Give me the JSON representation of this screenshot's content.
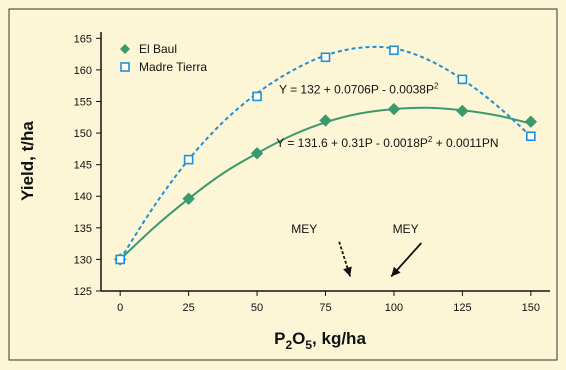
{
  "chart_data": {
    "type": "line",
    "title": "",
    "xlabel": "P2O5, kg/ha",
    "xlabel_parts": {
      "base": "P",
      "sub1": "2",
      "mid": "O",
      "sub2": "5",
      "rest": ", kg/ha"
    },
    "ylabel": "Yield, t/ha",
    "xlim": [
      -7,
      157
    ],
    "ylim": [
      125,
      166
    ],
    "x_ticks": [
      0,
      25,
      50,
      75,
      100,
      125,
      150
    ],
    "y_ticks": [
      125,
      130,
      135,
      140,
      145,
      150,
      155,
      160,
      165
    ],
    "grid": false,
    "legend_position": "top-left",
    "series": [
      {
        "name": "El Baul",
        "marker": "filled-diamond",
        "line_style": "solid",
        "color": "#3a9a6e",
        "x": [
          0,
          25,
          50,
          75,
          100,
          125,
          150
        ],
        "values": [
          130,
          139.6,
          146.8,
          152,
          153.8,
          153.5,
          151.8
        ],
        "curve": [
          [
            0,
            130
          ],
          [
            12.5,
            135.1
          ],
          [
            25,
            139.6
          ],
          [
            37.5,
            143.6
          ],
          [
            50,
            146.8
          ],
          [
            62.5,
            149.6
          ],
          [
            75,
            151.7
          ],
          [
            87.5,
            153.1
          ],
          [
            100,
            153.8
          ],
          [
            112.5,
            154
          ],
          [
            125,
            153.6
          ],
          [
            137.5,
            152.8
          ],
          [
            150,
            151.5
          ]
        ]
      },
      {
        "name": "Madre Tierra",
        "marker": "open-square",
        "line_style": "dashed",
        "color": "#1f8fd6",
        "x": [
          0,
          25,
          50,
          75,
          100,
          125,
          150
        ],
        "values": [
          130,
          145.8,
          155.8,
          162,
          163.1,
          158.5,
          149.5
        ],
        "curve": [
          [
            0,
            130
          ],
          [
            12.5,
            138.5
          ],
          [
            25,
            145.8
          ],
          [
            37.5,
            151.7
          ],
          [
            50,
            156.3
          ],
          [
            62.5,
            159.8
          ],
          [
            75,
            162.3
          ],
          [
            87.5,
            163.5
          ],
          [
            100,
            163.4
          ],
          [
            112.5,
            161.6
          ],
          [
            125,
            158.5
          ],
          [
            137.5,
            154.4
          ],
          [
            150,
            149.5
          ]
        ]
      }
    ],
    "annotations": [
      {
        "id": "eq-madre",
        "text_main": "Y = 132 + 0.0706P - 0.0038P",
        "superscript": "2",
        "text_tail": "",
        "x": 58,
        "y": 156.3
      },
      {
        "id": "eq-baul",
        "text_main": "Y = 131.6 + 0.31P - 0.0018P",
        "superscript": "2",
        "text_tail": " + 0.0011PN",
        "x": 57,
        "y": 147.8
      },
      {
        "id": "mey-madre",
        "text": "MEY",
        "arrow_style": "dashed",
        "x": 72,
        "y": 134.2,
        "arrow_from": [
          80,
          132.8
        ],
        "arrow_to": [
          84,
          127.3
        ]
      },
      {
        "id": "mey-baul",
        "text": "MEY",
        "arrow_style": "solid",
        "x": 109,
        "y": 134.2,
        "arrow_from": [
          110,
          132.6
        ],
        "arrow_to": [
          99,
          127.3
        ]
      }
    ]
  }
}
